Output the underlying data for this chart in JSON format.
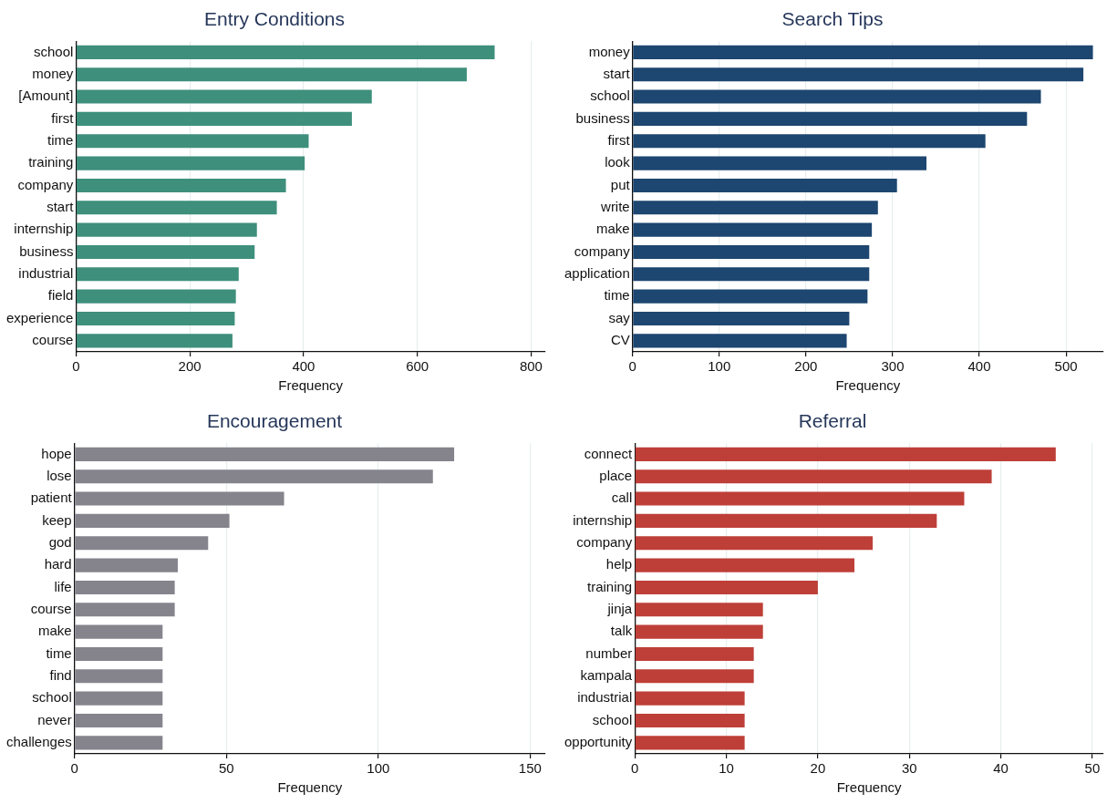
{
  "chart_data": [
    {
      "type": "bar",
      "orientation": "horizontal",
      "title": "Entry Conditions",
      "xlabel": "Frequency",
      "categories": [
        "school",
        "money",
        "[Amount]",
        "first",
        "time",
        "training",
        "company",
        "start",
        "internship",
        "business",
        "industrial",
        "field",
        "experience",
        "course"
      ],
      "values": [
        736,
        687,
        520,
        485,
        409,
        402,
        369,
        353,
        318,
        314,
        286,
        281,
        279,
        275
      ],
      "color": "#3e8f7c",
      "xlim": [
        0,
        825
      ],
      "xticks": [
        0,
        200,
        400,
        600,
        800
      ],
      "grid": "x"
    },
    {
      "type": "bar",
      "orientation": "horizontal",
      "title": "Search Tips",
      "xlabel": "Frequency",
      "categories": [
        "money",
        "start",
        "school",
        "business",
        "first",
        "look",
        "put",
        "write",
        "make",
        "company",
        "application",
        "time",
        "say",
        "CV"
      ],
      "values": [
        531,
        520,
        471,
        455,
        407,
        339,
        305,
        283,
        276,
        273,
        273,
        271,
        250,
        247
      ],
      "color": "#1d4670",
      "xlim": [
        0,
        543
      ],
      "xticks": [
        0,
        100,
        200,
        300,
        400,
        500
      ],
      "grid": "x"
    },
    {
      "type": "bar",
      "orientation": "horizontal",
      "title": "Encouragement",
      "xlabel": "Frequency",
      "categories": [
        "hope",
        "lose",
        "patient",
        "keep",
        "god",
        "hard",
        "life",
        "course",
        "make",
        "time",
        "find",
        "school",
        "never",
        "challenges"
      ],
      "values": [
        125,
        118,
        69,
        51,
        44,
        34,
        33,
        33,
        29,
        29,
        29,
        29,
        29,
        29
      ],
      "color": "#85848d",
      "xlim": [
        0,
        155
      ],
      "xticks": [
        0,
        50,
        100,
        150
      ],
      "grid": "x"
    },
    {
      "type": "bar",
      "orientation": "horizontal",
      "title": "Referral",
      "xlabel": "Frequency",
      "categories": [
        "connect",
        "place",
        "call",
        "internship",
        "company",
        "help",
        "training",
        "jinja",
        "talk",
        "number",
        "kampala",
        "industrial",
        "school",
        "opportunity"
      ],
      "values": [
        46,
        39,
        36,
        33,
        26,
        24,
        20,
        14,
        14,
        13,
        13,
        12,
        12,
        12
      ],
      "color": "#be3f38",
      "xlim": [
        0,
        51.2
      ],
      "xticks": [
        0,
        10,
        20,
        30,
        40,
        50
      ],
      "grid": "x"
    }
  ]
}
